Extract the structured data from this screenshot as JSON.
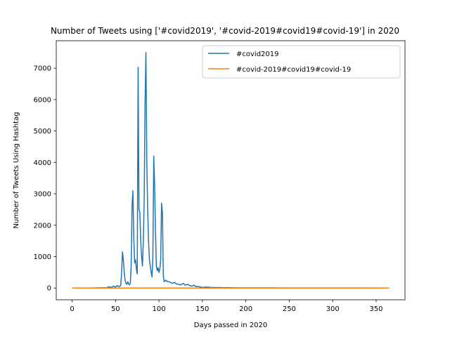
{
  "chart_data": {
    "type": "line",
    "title": "Number of Tweets using ['#covid2019', '#covid-2019#covid19#covid-19'] in 2020",
    "xlabel": "Days passed in 2020",
    "ylabel": "Number of Tweets Using Hashtag",
    "xlim": [
      -18.25,
      383.25
    ],
    "ylim": [
      -375,
      7875
    ],
    "xticks": [
      0,
      50,
      100,
      150,
      200,
      250,
      300,
      350
    ],
    "yticks": [
      0,
      1000,
      2000,
      3000,
      4000,
      5000,
      6000,
      7000
    ],
    "legend_position": "top-right",
    "grid": false,
    "series": [
      {
        "name": "#covid2019",
        "color": "#1f77b4",
        "points": [
          [
            0,
            0
          ],
          [
            10,
            0
          ],
          [
            20,
            0
          ],
          [
            30,
            5
          ],
          [
            40,
            10
          ],
          [
            42,
            40
          ],
          [
            45,
            20
          ],
          [
            48,
            60
          ],
          [
            50,
            30
          ],
          [
            52,
            80
          ],
          [
            54,
            40
          ],
          [
            56,
            80
          ],
          [
            57,
            500
          ],
          [
            58,
            1150
          ],
          [
            59,
            900
          ],
          [
            60,
            500
          ],
          [
            61,
            250
          ],
          [
            62,
            150
          ],
          [
            63,
            120
          ],
          [
            64,
            200
          ],
          [
            65,
            130
          ],
          [
            66,
            100
          ],
          [
            67,
            150
          ],
          [
            68,
            700
          ],
          [
            69,
            2600
          ],
          [
            70,
            3100
          ],
          [
            71,
            1600
          ],
          [
            72,
            800
          ],
          [
            73,
            900
          ],
          [
            74,
            600
          ],
          [
            75,
            450
          ],
          [
            76,
            7030
          ],
          [
            77,
            2500
          ],
          [
            78,
            2400
          ],
          [
            79,
            1500
          ],
          [
            80,
            1000
          ],
          [
            81,
            700
          ],
          [
            82,
            1500
          ],
          [
            83,
            2800
          ],
          [
            84,
            5900
          ],
          [
            85,
            7500
          ],
          [
            86,
            4000
          ],
          [
            87,
            2500
          ],
          [
            88,
            1500
          ],
          [
            89,
            900
          ],
          [
            90,
            700
          ],
          [
            91,
            500
          ],
          [
            92,
            350
          ],
          [
            93,
            1000
          ],
          [
            94,
            4200
          ],
          [
            95,
            3300
          ],
          [
            96,
            1800
          ],
          [
            97,
            700
          ],
          [
            98,
            550
          ],
          [
            99,
            650
          ],
          [
            100,
            500
          ],
          [
            101,
            600
          ],
          [
            102,
            900
          ],
          [
            103,
            2700
          ],
          [
            104,
            2400
          ],
          [
            105,
            400
          ],
          [
            106,
            200
          ],
          [
            108,
            250
          ],
          [
            110,
            200
          ],
          [
            112,
            200
          ],
          [
            115,
            150
          ],
          [
            118,
            180
          ],
          [
            120,
            130
          ],
          [
            122,
            120
          ],
          [
            125,
            100
          ],
          [
            128,
            150
          ],
          [
            130,
            90
          ],
          [
            133,
            120
          ],
          [
            135,
            80
          ],
          [
            138,
            60
          ],
          [
            140,
            90
          ],
          [
            143,
            40
          ],
          [
            145,
            50
          ],
          [
            150,
            20
          ],
          [
            155,
            30
          ],
          [
            160,
            20
          ],
          [
            165,
            15
          ],
          [
            170,
            15
          ],
          [
            175,
            10
          ],
          [
            180,
            10
          ],
          [
            190,
            5
          ],
          [
            200,
            5
          ],
          [
            220,
            5
          ],
          [
            250,
            3
          ],
          [
            280,
            3
          ],
          [
            300,
            2
          ],
          [
            330,
            2
          ],
          [
            365,
            0
          ]
        ]
      },
      {
        "name": "#covid-2019#covid19#covid-19",
        "color": "#ff7f0e",
        "points": [
          [
            0,
            0
          ],
          [
            365,
            0
          ]
        ]
      }
    ]
  }
}
